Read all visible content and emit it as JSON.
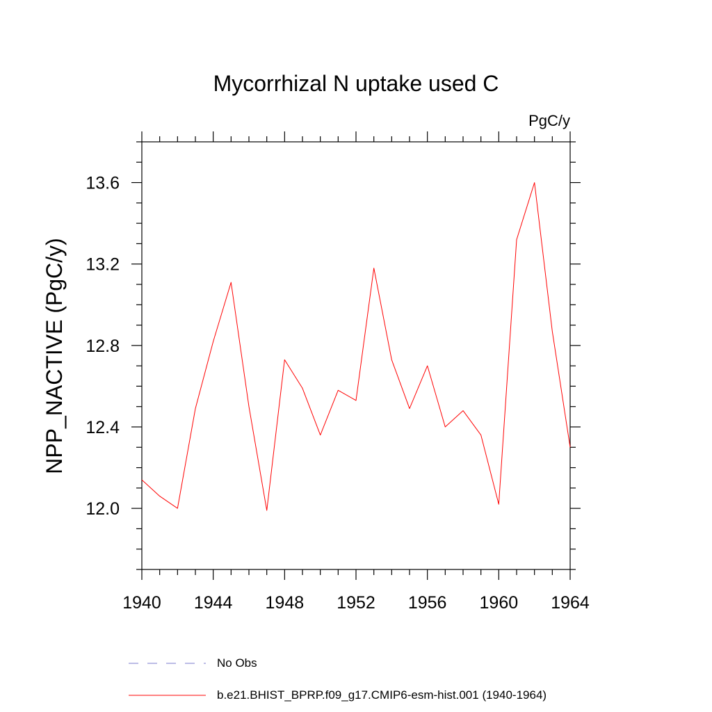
{
  "chart_data": {
    "type": "line",
    "title": "Mycorrhizal N uptake used C",
    "units_label": "PgC/y",
    "ylabel": "NPP_NACTIVE  (PgC/y)",
    "xlabel": "",
    "xlim": [
      1940,
      1964
    ],
    "ylim": [
      11.7,
      13.8
    ],
    "x_major_ticks": [
      1940,
      1944,
      1948,
      1952,
      1956,
      1960,
      1964
    ],
    "x_tick_labels": [
      "1940",
      "1944",
      "1948",
      "1952",
      "1956",
      "1960",
      "1964"
    ],
    "x_minor_step": 1,
    "y_major_ticks": [
      12.0,
      12.4,
      12.8,
      13.2,
      13.6
    ],
    "y_tick_labels": [
      "12.0",
      "12.4",
      "12.8",
      "13.2",
      "13.6"
    ],
    "y_minor_step": 0.1,
    "grid": false,
    "legend_position": "bottom",
    "series": [
      {
        "name": "b.e21.BHIST_BPRP.f09_g17.CMIP6-esm-hist.001 (1940-1964)",
        "color": "#ff0000",
        "dash": "solid",
        "x": [
          1940,
          1941,
          1942,
          1943,
          1944,
          1945,
          1946,
          1947,
          1948,
          1949,
          1950,
          1951,
          1952,
          1953,
          1954,
          1955,
          1956,
          1957,
          1958,
          1959,
          1960,
          1961,
          1962,
          1963,
          1964
        ],
        "y": [
          12.14,
          12.06,
          12.0,
          12.49,
          12.82,
          13.11,
          12.5,
          11.99,
          12.73,
          12.59,
          12.36,
          12.58,
          12.53,
          13.18,
          12.73,
          12.49,
          12.7,
          12.4,
          12.48,
          12.36,
          12.02,
          13.32,
          13.6,
          12.87,
          12.3
        ]
      }
    ],
    "legend": [
      {
        "label": "No Obs",
        "color": "#7a7acc",
        "dash": "dashed"
      },
      {
        "label": "b.e21.BHIST_BPRP.f09_g17.CMIP6-esm-hist.001 (1940-1964)",
        "color": "#ff0000",
        "dash": "solid"
      }
    ]
  }
}
